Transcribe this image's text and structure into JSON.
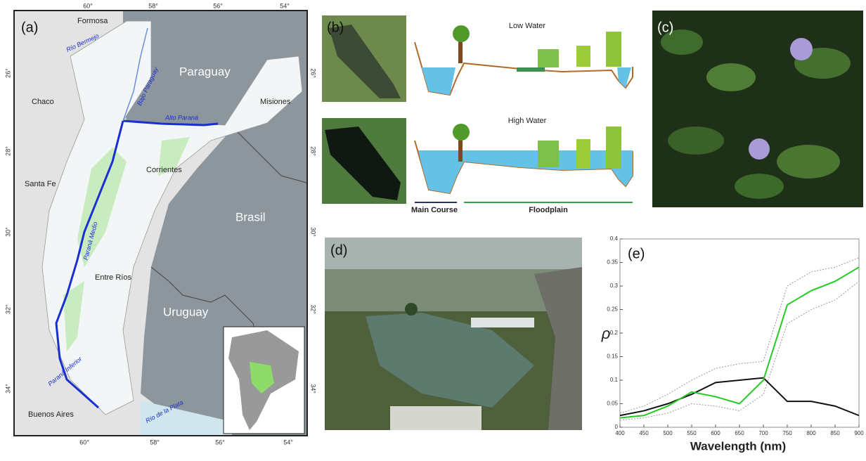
{
  "panels": {
    "a": {
      "label": "(a)",
      "top_ticks": [
        "60°",
        "58°",
        "56°",
        "54°"
      ],
      "bottom_ticks": [
        "60°",
        "58°",
        "56°",
        "54°"
      ],
      "left_ticks": [
        "26°",
        "28°",
        "30°",
        "32°",
        "34°"
      ],
      "right_ticks": [
        "26°",
        "28°",
        "30°",
        "32°",
        "34°"
      ],
      "places": [
        "Formosa",
        "Chaco",
        "Santa Fe",
        "Corrientes",
        "Misiones",
        "Entre Ríos",
        "Buenos Aires",
        "Paraguay",
        "Brasil",
        "Uruguay"
      ],
      "rivers": [
        "Río Bermejo",
        "Bajo Paraguay",
        "Alto Paraná",
        "Paraná Medio",
        "Paraná Inferior",
        "Río de la Plata"
      ]
    },
    "b": {
      "label": "(b)",
      "low_water": "Low Water",
      "high_water": "High Water",
      "main_course": "Main Course",
      "floodplain": "Floodplain"
    },
    "c": {
      "label": "(c)"
    },
    "d": {
      "label": "(d)"
    }
  },
  "chart_data": {
    "type": "line",
    "panel_label": "(e)",
    "xlabel": "Wavelength (nm)",
    "ylabel": "ρ",
    "x": [
      400,
      450,
      500,
      550,
      600,
      650,
      700,
      750,
      800,
      850,
      900
    ],
    "series": [
      {
        "color": "#999999",
        "linestyle": "dotted",
        "values": [
          0.03,
          0.045,
          0.07,
          0.1,
          0.125,
          0.135,
          0.14,
          0.3,
          0.33,
          0.34,
          0.36
        ]
      },
      {
        "color": "#999999",
        "linestyle": "dotted",
        "values": [
          0.015,
          0.02,
          0.03,
          0.05,
          0.045,
          0.035,
          0.07,
          0.22,
          0.25,
          0.27,
          0.31
        ]
      },
      {
        "color": "#111111",
        "linestyle": "solid",
        "values": [
          0.025,
          0.035,
          0.05,
          0.07,
          0.095,
          0.1,
          0.105,
          0.055,
          0.055,
          0.045,
          0.025
        ]
      },
      {
        "color": "#22cc22",
        "linestyle": "solid",
        "values": [
          0.02,
          0.025,
          0.045,
          0.075,
          0.065,
          0.05,
          0.1,
          0.26,
          0.29,
          0.31,
          0.34
        ]
      }
    ],
    "xlim": [
      400,
      900
    ],
    "ylim": [
      0,
      0.4
    ],
    "xticks": [
      400,
      450,
      500,
      550,
      600,
      650,
      700,
      750,
      800,
      850,
      900
    ],
    "yticks": [
      0,
      0.05,
      0.1,
      0.15,
      0.2,
      0.25,
      0.3,
      0.35,
      0.4
    ]
  }
}
